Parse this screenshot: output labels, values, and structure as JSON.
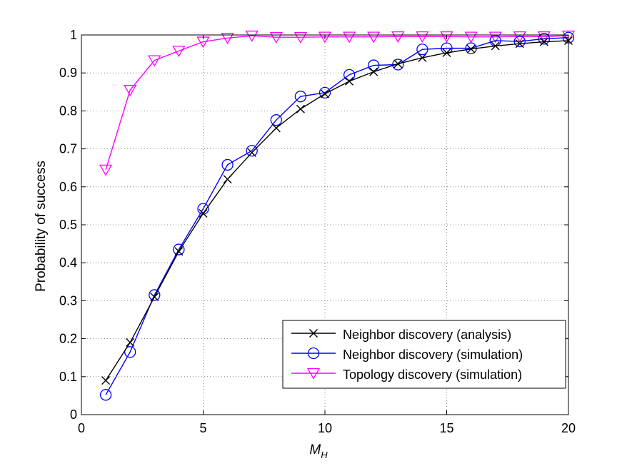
{
  "chart_data": {
    "type": "line",
    "title": "",
    "xlabel_main": "M",
    "xlabel_sub": "H",
    "ylabel": "Probability of  success",
    "xlim": [
      0,
      20
    ],
    "ylim": [
      0,
      1
    ],
    "x_ticks": [
      0,
      5,
      10,
      15,
      20
    ],
    "y_ticks": [
      0,
      0.1,
      0.2,
      0.3,
      0.4,
      0.5,
      0.6,
      0.7,
      0.8,
      0.9,
      1
    ],
    "x_tick_labels": [
      "0",
      "5",
      "10",
      "15",
      "20"
    ],
    "y_tick_labels": [
      "0",
      "0.1",
      "0.2",
      "0.3",
      "0.4",
      "0.5",
      "0.6",
      "0.7",
      "0.8",
      "0.9",
      "1"
    ],
    "grid": true,
    "legend_position": "lower-right",
    "x": [
      1,
      2,
      3,
      4,
      5,
      6,
      7,
      8,
      9,
      10,
      11,
      12,
      13,
      14,
      15,
      16,
      17,
      18,
      19,
      20
    ],
    "series": [
      {
        "name": "Neighbor discovery (analysis)",
        "color": "#000000",
        "marker": "x",
        "values": [
          0.09,
          0.19,
          0.31,
          0.43,
          0.53,
          0.62,
          0.69,
          0.755,
          0.805,
          0.845,
          0.878,
          0.903,
          0.924,
          0.94,
          0.953,
          0.963,
          0.971,
          0.977,
          0.982,
          0.985
        ]
      },
      {
        "name": "Neighbor discovery (simulation)",
        "color": "#0000ff",
        "marker": "circle",
        "values": [
          0.052,
          0.165,
          0.315,
          0.435,
          0.542,
          0.658,
          0.695,
          0.776,
          0.838,
          0.848,
          0.895,
          0.92,
          0.922,
          0.962,
          0.965,
          0.965,
          0.985,
          0.983,
          0.99,
          0.993
        ]
      },
      {
        "name": "Topology discovery (simulation)",
        "color": "#ff00ff",
        "marker": "triangle-down",
        "values": [
          0.645,
          0.855,
          0.933,
          0.958,
          0.982,
          0.992,
          0.998,
          0.994,
          0.994,
          0.995,
          0.995,
          0.995,
          0.996,
          0.996,
          0.996,
          0.995,
          0.995,
          0.996,
          0.996,
          0.998
        ]
      }
    ]
  }
}
